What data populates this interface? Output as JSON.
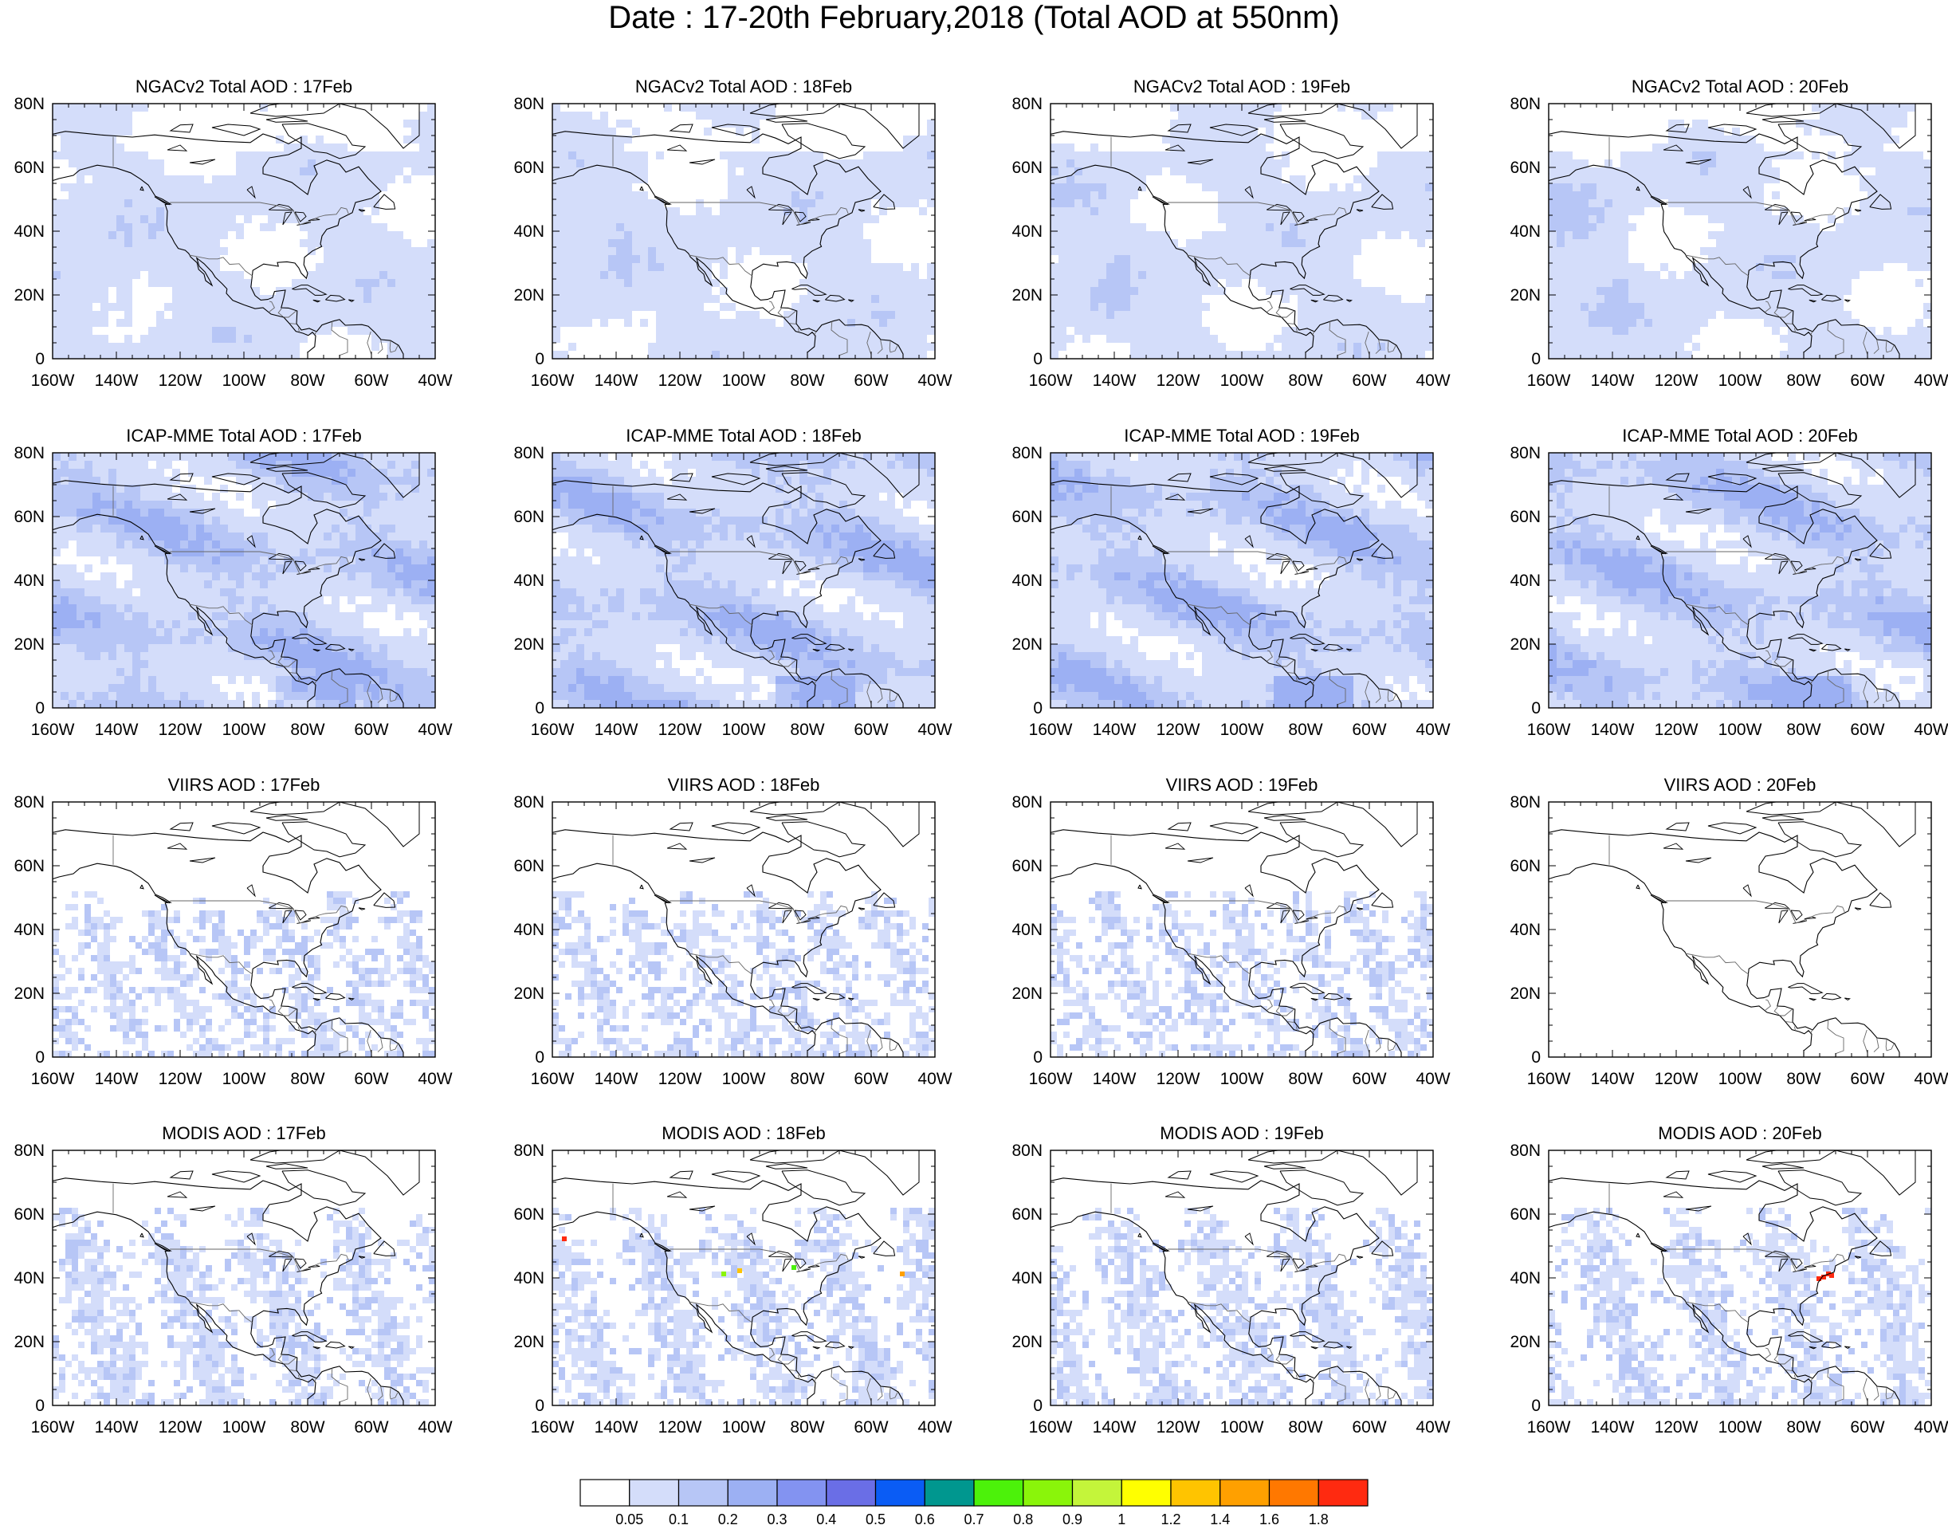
{
  "figure": {
    "title": "Date : 17-20th February,2018 (Total AOD at 550nm)"
  },
  "panels": [
    {
      "title": "NGACv2 Total AOD : 17Feb",
      "product": "NGACv2",
      "date": "17Feb"
    },
    {
      "title": "NGACv2 Total AOD : 18Feb",
      "product": "NGACv2",
      "date": "18Feb"
    },
    {
      "title": "NGACv2 Total AOD : 19Feb",
      "product": "NGACv2",
      "date": "19Feb"
    },
    {
      "title": "NGACv2 Total AOD : 20Feb",
      "product": "NGACv2",
      "date": "20Feb"
    },
    {
      "title": "ICAP-MME Total AOD : 17Feb",
      "product": "ICAP-MME",
      "date": "17Feb"
    },
    {
      "title": "ICAP-MME Total AOD : 18Feb",
      "product": "ICAP-MME",
      "date": "18Feb"
    },
    {
      "title": "ICAP-MME Total AOD : 19Feb",
      "product": "ICAP-MME",
      "date": "19Feb"
    },
    {
      "title": "ICAP-MME Total AOD : 20Feb",
      "product": "ICAP-MME",
      "date": "20Feb"
    },
    {
      "title": "VIIRS AOD : 17Feb",
      "product": "VIIRS",
      "date": "17Feb"
    },
    {
      "title": "VIIRS AOD : 18Feb",
      "product": "VIIRS",
      "date": "18Feb"
    },
    {
      "title": "VIIRS AOD : 19Feb",
      "product": "VIIRS",
      "date": "19Feb"
    },
    {
      "title": "VIIRS AOD : 20Feb",
      "product": "VIIRS",
      "date": "20Feb"
    },
    {
      "title": "MODIS AOD : 17Feb",
      "product": "MODIS",
      "date": "17Feb"
    },
    {
      "title": "MODIS AOD : 18Feb",
      "product": "MODIS",
      "date": "18Feb"
    },
    {
      "title": "MODIS AOD : 19Feb",
      "product": "MODIS",
      "date": "19Feb"
    },
    {
      "title": "MODIS AOD : 20Feb",
      "product": "MODIS",
      "date": "20Feb"
    }
  ],
  "axes": {
    "lon_range": [
      -160,
      -40
    ],
    "lat_range": [
      0,
      80
    ],
    "x_ticks": [
      {
        "value": -160,
        "label": "160W"
      },
      {
        "value": -140,
        "label": "140W"
      },
      {
        "value": -120,
        "label": "120W"
      },
      {
        "value": -100,
        "label": "100W"
      },
      {
        "value": -80,
        "label": "80W"
      },
      {
        "value": -60,
        "label": "60W"
      },
      {
        "value": -40,
        "label": "40W"
      }
    ],
    "y_ticks": [
      {
        "value": 0,
        "label": "0"
      },
      {
        "value": 20,
        "label": "20N"
      },
      {
        "value": 40,
        "label": "40N"
      },
      {
        "value": 60,
        "label": "60N"
      },
      {
        "value": 80,
        "label": "80N"
      }
    ]
  },
  "colorbar": {
    "colors": [
      "#ffffff",
      "#d4ddfa",
      "#b7c6f6",
      "#9cb0f3",
      "#8393f1",
      "#6a6ee6",
      "#0a5cf5",
      "#00978f",
      "#4cf20a",
      "#8af50a",
      "#c4f53a",
      "#ffff00",
      "#ffc400",
      "#ffa000",
      "#ff7800",
      "#ff2a10"
    ],
    "labels": [
      "0.05",
      "0.1",
      "0.2",
      "0.3",
      "0.4",
      "0.5",
      "0.6",
      "0.7",
      "0.8",
      "0.9",
      "1",
      "1.2",
      "1.4",
      "1.6",
      "1.8"
    ]
  }
}
